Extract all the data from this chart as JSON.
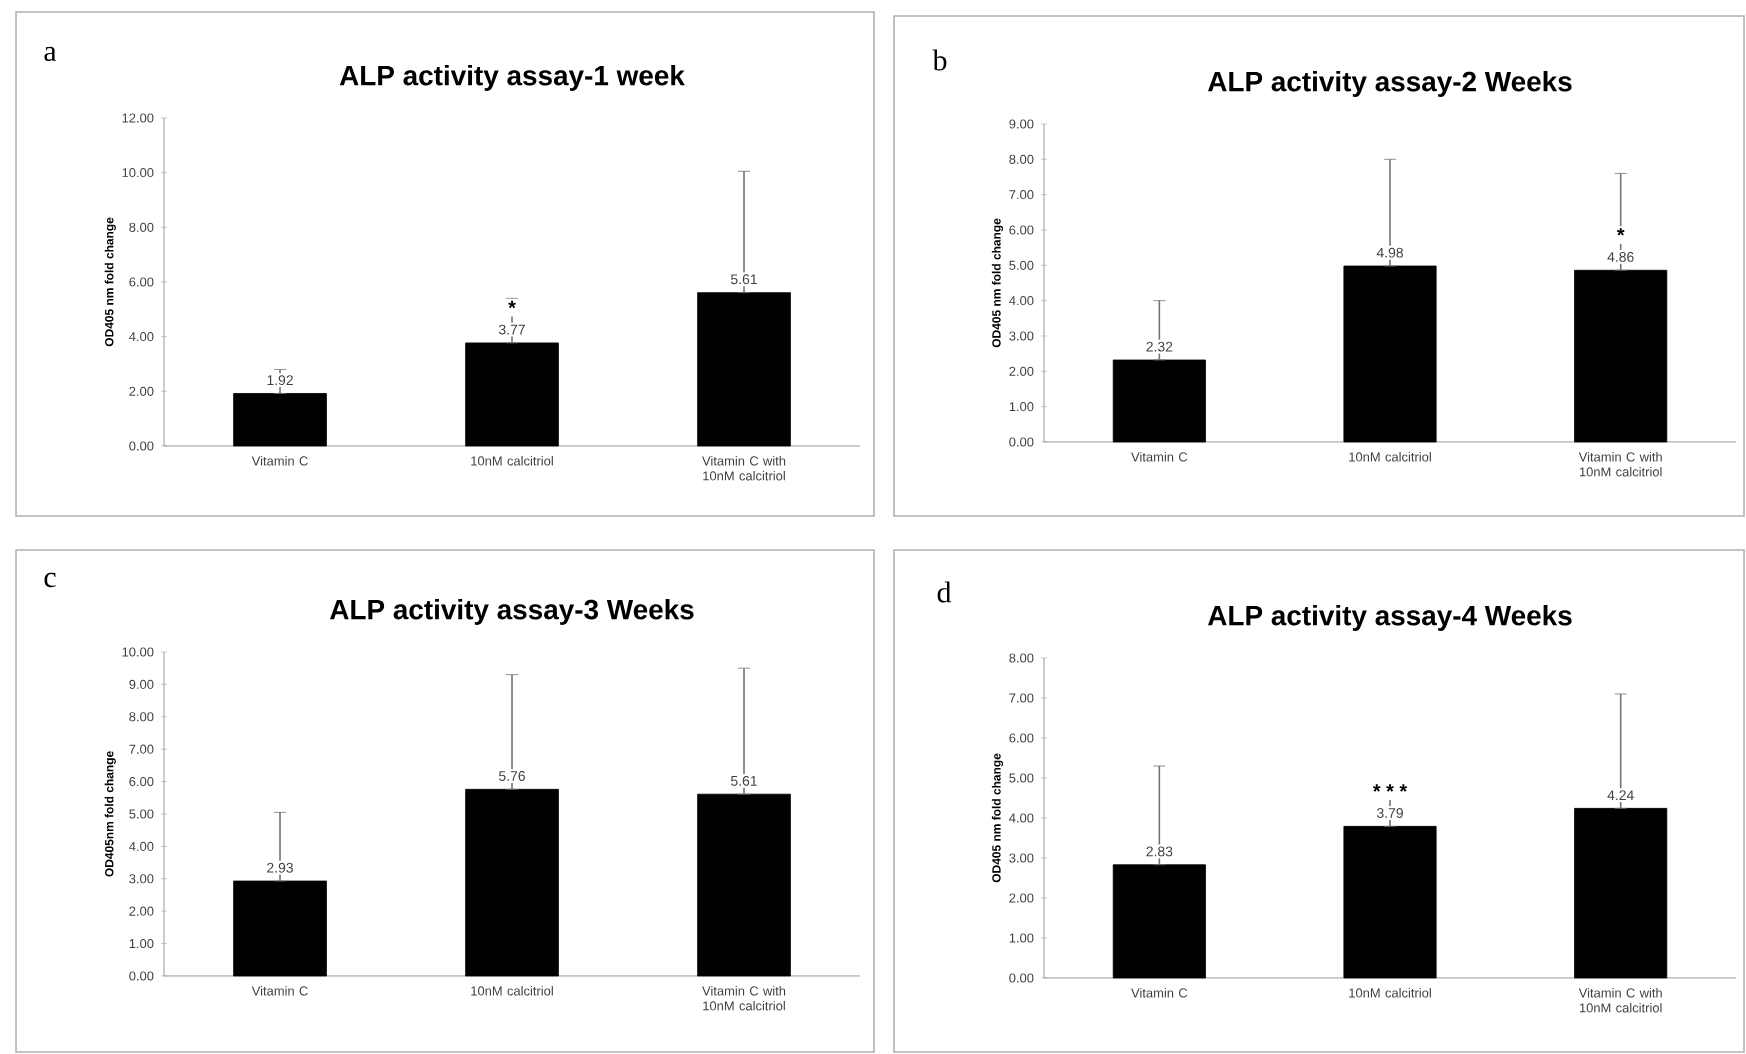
{
  "chart_data": [
    {
      "type": "bar",
      "title": "ALP activity assay-1 week",
      "ylabel": "OD405 nm fold change",
      "categories": [
        "Vitamin C",
        "10nM calcitriol",
        "Vitamin C with 10nM calcitriol"
      ],
      "values": [
        1.92,
        3.77,
        5.61
      ],
      "value_labels": [
        "1.92",
        "3.77",
        "5.61"
      ],
      "color": "#000000",
      "errors": [
        [
          1.92,
          2.8
        ],
        [
          3.77,
          5.4
        ],
        [
          5.61,
          10.05
        ]
      ],
      "ylim": [
        0,
        12
      ],
      "yticks": [
        {
          "value": 0,
          "label": "0.00"
        },
        {
          "value": 2,
          "label": "2.00"
        },
        {
          "value": 4,
          "label": "4.00"
        },
        {
          "value": 6,
          "label": "6.00"
        },
        {
          "value": 8,
          "label": "8.00"
        },
        {
          "value": 10,
          "label": "10.00"
        },
        {
          "value": 12,
          "label": "12.00"
        }
      ],
      "annotations": [
        "a",
        {
          "text": "*",
          "x": "10nM calcitriol",
          "y": 3.77
        }
      ]
    },
    {
      "type": "bar",
      "title": "ALP activity assay-2 Weeks",
      "ylabel": "OD405 nm fold change",
      "categories": [
        "Vitamin C",
        "10nM calcitriol",
        "Vitamin C with 10nM calcitriol"
      ],
      "values": [
        2.32,
        4.98,
        4.86
      ],
      "value_labels": [
        "2.32",
        "4.98",
        "4.86"
      ],
      "color": "#000000",
      "errors": [
        [
          2.32,
          4.0
        ],
        [
          4.98,
          8.0
        ],
        [
          4.86,
          7.6
        ]
      ],
      "ylim": [
        0,
        9
      ],
      "yticks": [
        {
          "value": 0,
          "label": "0.00"
        },
        {
          "value": 1,
          "label": "1.00"
        },
        {
          "value": 2,
          "label": "2.00"
        },
        {
          "value": 3,
          "label": "3.00"
        },
        {
          "value": 4,
          "label": "4.00"
        },
        {
          "value": 5,
          "label": "5.00"
        },
        {
          "value": 6,
          "label": "6.00"
        },
        {
          "value": 7,
          "label": "7.00"
        },
        {
          "value": 8,
          "label": "8.00"
        },
        {
          "value": 9,
          "label": "9.00"
        }
      ],
      "annotations": [
        "b",
        {
          "text": "*",
          "x": "Vitamin C with 10nM calcitriol",
          "y": 4.86
        }
      ]
    },
    {
      "type": "bar",
      "title": "ALP activity assay-3 Weeks",
      "ylabel": "OD405nm fold change",
      "categories": [
        "Vitamin C",
        "10nM calcitriol",
        "Vitamin C with 10nM calcitriol"
      ],
      "values": [
        2.93,
        5.76,
        5.61
      ],
      "value_labels": [
        "2.93",
        "5.76",
        "5.61"
      ],
      "color": "#000000",
      "errors": [
        [
          2.93,
          5.05
        ],
        [
          5.76,
          9.3
        ],
        [
          5.61,
          9.5
        ]
      ],
      "ylim": [
        0,
        10
      ],
      "yticks": [
        {
          "value": 0,
          "label": "0.00"
        },
        {
          "value": 1,
          "label": "1.00"
        },
        {
          "value": 2,
          "label": "2.00"
        },
        {
          "value": 3,
          "label": "3.00"
        },
        {
          "value": 4,
          "label": "4.00"
        },
        {
          "value": 5,
          "label": "5.00"
        },
        {
          "value": 6,
          "label": "6.00"
        },
        {
          "value": 7,
          "label": "7.00"
        },
        {
          "value": 8,
          "label": "8.00"
        },
        {
          "value": 9,
          "label": "9.00"
        },
        {
          "value": 10,
          "label": "10.00"
        }
      ],
      "annotations": [
        "c"
      ]
    },
    {
      "type": "bar",
      "title": "ALP activity assay-4 Weeks",
      "ylabel": "OD405 nm fold change",
      "categories": [
        "Vitamin C",
        "10nM calcitriol",
        "Vitamin C with 10nM calcitriol"
      ],
      "values": [
        2.83,
        3.79,
        4.24
      ],
      "value_labels": [
        "2.83",
        "3.79",
        "4.24"
      ],
      "color": "#000000",
      "errors": [
        [
          2.83,
          5.3
        ],
        [
          3.79,
          4.55
        ],
        [
          4.24,
          7.1
        ]
      ],
      "ylim": [
        0,
        8
      ],
      "yticks": [
        {
          "value": 0,
          "label": "0.00"
        },
        {
          "value": 1,
          "label": "1.00"
        },
        {
          "value": 2,
          "label": "2.00"
        },
        {
          "value": 3,
          "label": "3.00"
        },
        {
          "value": 4,
          "label": "4.00"
        },
        {
          "value": 5,
          "label": "5.00"
        },
        {
          "value": 6,
          "label": "6.00"
        },
        {
          "value": 7,
          "label": "7.00"
        },
        {
          "value": 8,
          "label": "8.00"
        }
      ],
      "annotations": [
        "d",
        {
          "text": "* * *",
          "x": "10nM calcitriol",
          "y": 3.79
        }
      ]
    }
  ]
}
